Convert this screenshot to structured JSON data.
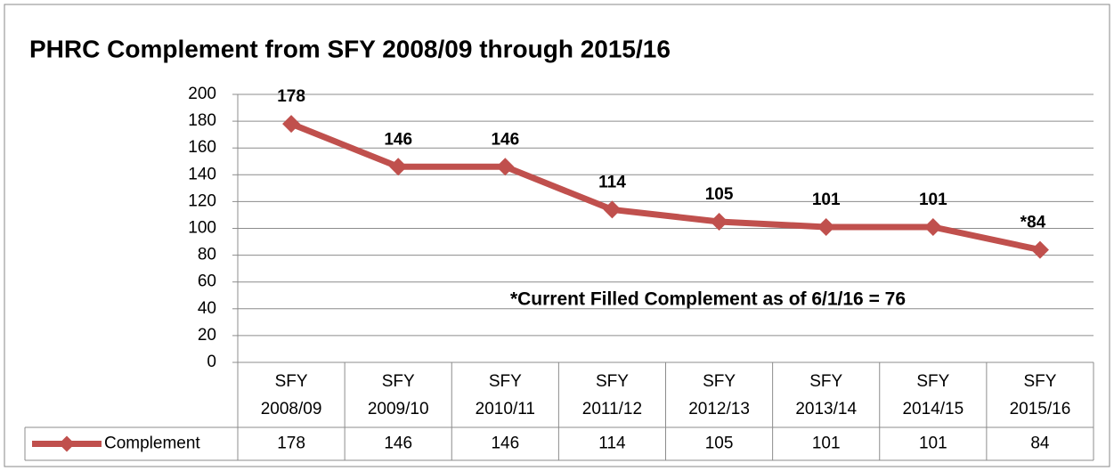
{
  "chart_data": {
    "type": "line",
    "title": "PHRC Complement from SFY 2008/09 through 2015/16",
    "categories": [
      "SFY 2008/09",
      "SFY 2009/10",
      "SFY 2010/11",
      "SFY 2011/12",
      "SFY 2012/13",
      "SFY 2013/14",
      "SFY 2014/15",
      "SFY 2015/16"
    ],
    "series": [
      {
        "name": "Complement",
        "color": "#c0504d",
        "values": [
          178,
          146,
          146,
          114,
          105,
          101,
          101,
          84
        ],
        "value_labels": [
          "178",
          "146",
          "146",
          "114",
          "105",
          "101",
          "101",
          "*84"
        ]
      }
    ],
    "annotation": "*Current Filled Complement  as of 6/1/16 = 76",
    "ylim": [
      0,
      200
    ],
    "yticks": [
      0,
      20,
      40,
      60,
      80,
      100,
      120,
      140,
      160,
      180,
      200
    ],
    "grid": true
  }
}
